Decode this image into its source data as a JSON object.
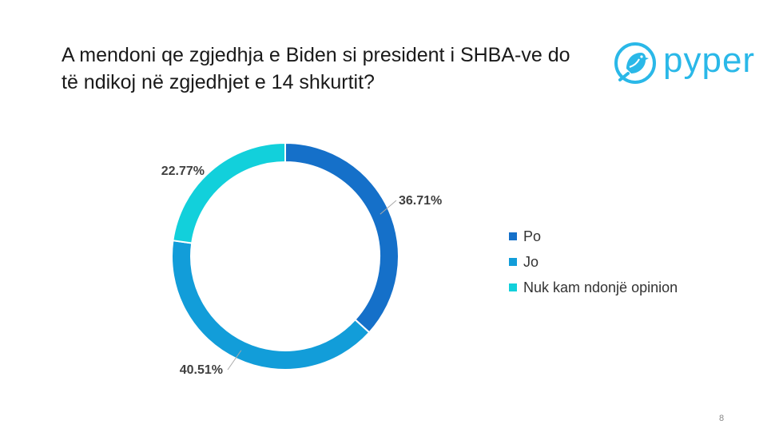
{
  "title": "A mendoni qe zgjedhja e Biden si president i SHBA-ve do të ndikoj në zgjedhjet e 14 shkurtit?",
  "logo": {
    "text": "pyper",
    "icon": "bird-icon",
    "color": "#2ab8e8"
  },
  "page_number": "8",
  "chart_data": {
    "type": "pie",
    "donut": true,
    "categories": [
      "Po",
      "Jo",
      "Nuk kam ndonjë opinion"
    ],
    "values": [
      36.71,
      40.51,
      22.77
    ],
    "labels": [
      "36.71%",
      "40.51%",
      "22.77%"
    ],
    "colors": [
      "#1570c9",
      "#129dd9",
      "#12d0db"
    ],
    "legend_position": "right"
  }
}
